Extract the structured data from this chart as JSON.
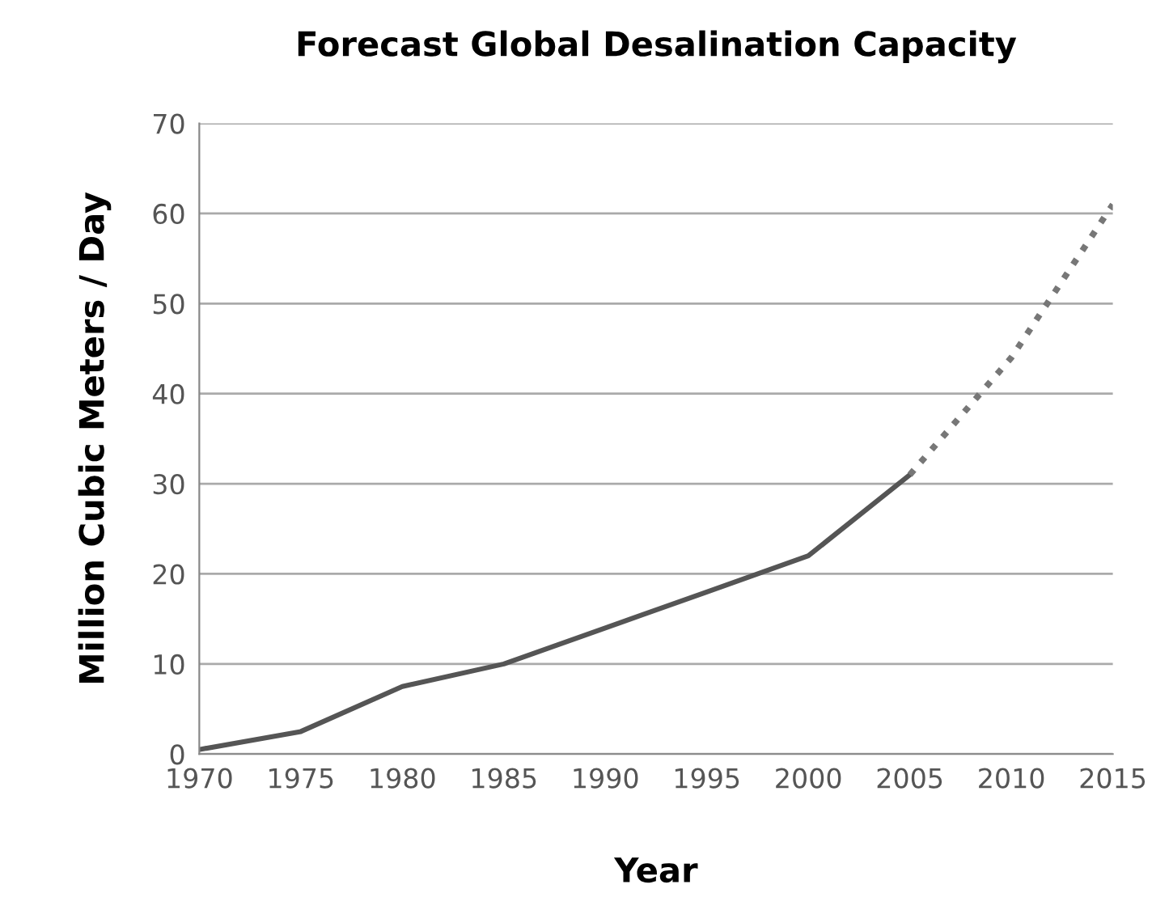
{
  "chart_data": {
    "type": "line",
    "title": "Forecast Global Desalination Capacity",
    "xlabel": "Year",
    "ylabel": "Million Cubic Meters / Day",
    "series": [
      {
        "color": "#555555",
        "line_style": "solid",
        "x": [
          1970,
          1975,
          1980,
          1985,
          1990,
          1995,
          2000,
          2005
        ],
        "values": [
          0.5,
          2.5,
          7.5,
          10,
          14,
          18,
          22,
          31
        ]
      },
      {
        "color": "#777777",
        "line_style": "dotted",
        "x": [
          2005,
          2010,
          2015
        ],
        "values": [
          31,
          44,
          61
        ]
      }
    ],
    "xlim": [
      1970,
      2015
    ],
    "xticks": [
      1970,
      1975,
      1980,
      1985,
      1990,
      1995,
      2000,
      2005,
      2010,
      2015
    ],
    "ylim": [
      0,
      70
    ],
    "yticks": [
      0,
      10,
      20,
      30,
      40,
      50,
      60,
      70
    ],
    "grid": "y",
    "marker": "none"
  }
}
